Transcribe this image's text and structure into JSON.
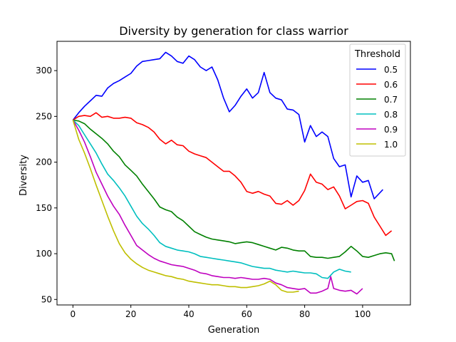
{
  "chart_data": {
    "type": "line",
    "title": "Diversity by generation for class warrior",
    "xlabel": "Generation",
    "ylabel": "Diversity",
    "xlim": [
      -5.5,
      116.5
    ],
    "ylim": [
      44,
      332
    ],
    "xticks": [
      0,
      20,
      40,
      60,
      80,
      100
    ],
    "yticks": [
      50,
      100,
      150,
      200,
      250,
      300
    ],
    "grid": false,
    "legend": {
      "title": "Threshold",
      "placement": "top-right"
    },
    "series": [
      {
        "name": "0.5",
        "color": "#0000ff",
        "x": [
          0,
          2,
          4,
          6,
          8,
          10,
          12,
          14,
          16,
          18,
          20,
          22,
          24,
          26,
          28,
          30,
          32,
          34,
          36,
          38,
          40,
          42,
          44,
          46,
          48,
          50,
          52,
          54,
          56,
          58,
          60,
          62,
          64,
          66,
          68,
          70,
          72,
          74,
          76,
          78,
          80,
          82,
          84,
          86,
          88,
          90,
          92,
          94,
          96,
          98,
          100,
          102,
          104,
          107
        ],
        "y": [
          246,
          254,
          261,
          267,
          273,
          272,
          281,
          286,
          289,
          293,
          297,
          305,
          310,
          311,
          312,
          313,
          320,
          316,
          310,
          308,
          316,
          312,
          304,
          300,
          304,
          290,
          270,
          255,
          262,
          272,
          280,
          270,
          276,
          298,
          276,
          270,
          268,
          258,
          257,
          252,
          222,
          240,
          228,
          233,
          228,
          204,
          195,
          197,
          162,
          185,
          178,
          180,
          160,
          170
        ]
      },
      {
        "name": "0.6",
        "color": "#ff0000",
        "x": [
          0,
          2,
          4,
          6,
          8,
          10,
          12,
          14,
          16,
          18,
          20,
          22,
          24,
          26,
          28,
          30,
          32,
          34,
          36,
          38,
          40,
          42,
          44,
          46,
          48,
          50,
          52,
          54,
          56,
          58,
          60,
          62,
          64,
          66,
          68,
          70,
          72,
          74,
          76,
          78,
          80,
          82,
          84,
          86,
          88,
          90,
          92,
          94,
          96,
          98,
          100,
          102,
          104,
          106,
          108,
          110
        ],
        "y": [
          246,
          250,
          251,
          250,
          254,
          249,
          250,
          248,
          248,
          249,
          248,
          243,
          241,
          238,
          233,
          225,
          220,
          224,
          219,
          218,
          212,
          209,
          207,
          205,
          200,
          195,
          190,
          190,
          185,
          178,
          168,
          166,
          168,
          165,
          163,
          155,
          154,
          158,
          153,
          158,
          169,
          187,
          178,
          176,
          170,
          173,
          163,
          149,
          153,
          157,
          158,
          155,
          140,
          130,
          120,
          125
        ]
      },
      {
        "name": "0.7",
        "color": "#008000",
        "x": [
          0,
          2,
          4,
          6,
          8,
          10,
          12,
          14,
          16,
          18,
          20,
          22,
          24,
          26,
          28,
          30,
          32,
          34,
          36,
          38,
          40,
          42,
          44,
          46,
          48,
          50,
          52,
          54,
          56,
          58,
          60,
          62,
          64,
          66,
          68,
          70,
          72,
          74,
          76,
          78,
          80,
          82,
          84,
          86,
          88,
          90,
          92,
          94,
          96,
          98,
          100,
          102,
          104,
          106,
          108,
          110,
          111
        ],
        "y": [
          246,
          245,
          242,
          236,
          231,
          226,
          220,
          212,
          206,
          197,
          191,
          185,
          176,
          168,
          160,
          151,
          148,
          146,
          140,
          136,
          130,
          124,
          121,
          118,
          116,
          115,
          114,
          113,
          111,
          112,
          113,
          112,
          110,
          108,
          106,
          104,
          107,
          106,
          104,
          103,
          103,
          97,
          96,
          96,
          95,
          96,
          97,
          102,
          108,
          103,
          97,
          96,
          98,
          100,
          101,
          100,
          92
        ]
      },
      {
        "name": "0.8",
        "color": "#00bfbf",
        "x": [
          0,
          2,
          4,
          6,
          8,
          10,
          12,
          14,
          16,
          18,
          20,
          22,
          24,
          26,
          28,
          30,
          32,
          34,
          36,
          38,
          40,
          42,
          44,
          46,
          48,
          50,
          52,
          54,
          56,
          58,
          60,
          62,
          64,
          66,
          68,
          70,
          72,
          74,
          76,
          78,
          80,
          82,
          84,
          86,
          88,
          90,
          92,
          94,
          96
        ],
        "y": [
          246,
          240,
          230,
          220,
          210,
          198,
          187,
          180,
          172,
          163,
          152,
          141,
          133,
          127,
          120,
          112,
          108,
          106,
          104,
          103,
          102,
          100,
          97,
          96,
          95,
          94,
          93,
          92,
          91,
          90,
          88,
          86,
          85,
          84,
          84,
          82,
          81,
          80,
          81,
          80,
          79,
          79,
          78,
          74,
          73,
          80,
          83,
          81,
          80
        ]
      },
      {
        "name": "0.9",
        "color": "#bf00bf",
        "x": [
          0,
          2,
          4,
          6,
          8,
          10,
          12,
          14,
          16,
          18,
          20,
          22,
          24,
          26,
          28,
          30,
          32,
          34,
          36,
          38,
          40,
          42,
          44,
          46,
          48,
          50,
          52,
          54,
          56,
          58,
          60,
          62,
          64,
          66,
          68,
          70,
          72,
          74,
          76,
          78,
          80,
          82,
          84,
          86,
          88,
          89,
          90,
          92,
          94,
          96,
          98,
          100
        ],
        "y": [
          246,
          235,
          222,
          206,
          189,
          176,
          163,
          152,
          143,
          131,
          120,
          109,
          104,
          99,
          95,
          92,
          90,
          88,
          87,
          86,
          84,
          82,
          79,
          78,
          76,
          75,
          74,
          74,
          73,
          74,
          73,
          72,
          72,
          73,
          72,
          68,
          66,
          63,
          62,
          61,
          62,
          57,
          57,
          59,
          62,
          75,
          62,
          60,
          59,
          60,
          56,
          62
        ]
      },
      {
        "name": "1.0",
        "color": "#bfbf00",
        "x": [
          0,
          2,
          4,
          6,
          8,
          10,
          12,
          14,
          16,
          18,
          20,
          22,
          24,
          26,
          28,
          30,
          32,
          34,
          36,
          38,
          40,
          42,
          44,
          46,
          48,
          50,
          52,
          54,
          56,
          58,
          60,
          62,
          64,
          66,
          68,
          70,
          72,
          74,
          76,
          78
        ],
        "y": [
          246,
          225,
          210,
          193,
          175,
          158,
          141,
          125,
          111,
          101,
          94,
          89,
          85,
          82,
          80,
          78,
          76,
          75,
          73,
          72,
          70,
          69,
          68,
          67,
          66,
          66,
          65,
          64,
          64,
          63,
          63,
          64,
          65,
          67,
          70,
          66,
          60,
          58,
          58,
          59
        ]
      }
    ]
  }
}
